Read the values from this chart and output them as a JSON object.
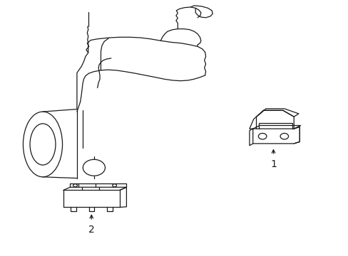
{
  "bg_color": "#ffffff",
  "line_color": "#1a1a1a",
  "line_width": 0.9,
  "fig_width": 4.89,
  "fig_height": 3.6,
  "label1": "1",
  "label2": "2"
}
